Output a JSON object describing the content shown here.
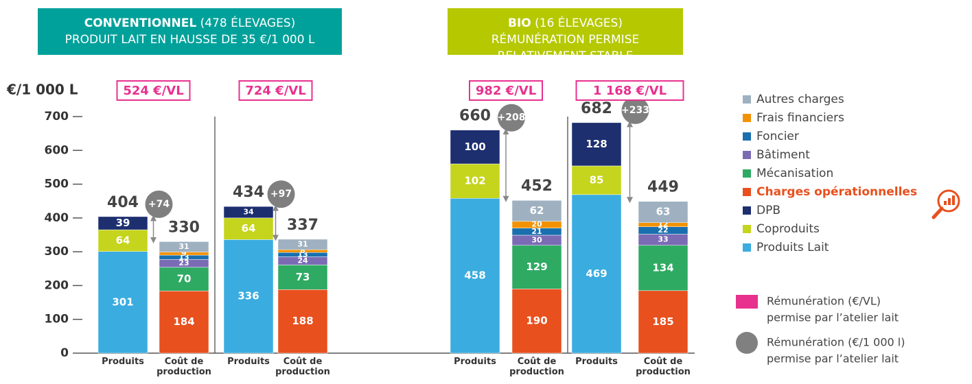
{
  "chart_data": {
    "type": "bar",
    "stacked": true,
    "panels": [
      {
        "title": "CONVENTIONNEL",
        "note": "(478 ÉLEVAGES)",
        "subtitle": "PRODUIT LAIT EN HAUSSE DE  35 €/1 000 L",
        "color": "#00a19a"
      },
      {
        "title": "BIO",
        "note": "(16 ÉLEVAGES)",
        "subtitle": "RÉMUNÉRATION PERMISE RELATIVEMENT STABLE",
        "color": "#b5c800"
      }
    ],
    "y_label": "€/1 000 L",
    "ylim": [
      0,
      700
    ],
    "yticks": [
      0,
      100,
      200,
      300,
      400,
      500,
      600,
      700
    ],
    "categories": [
      "Produits",
      "Coût de production",
      "Produits",
      "Coût de production",
      "Produits",
      "Coût de production",
      "Produits",
      "Coût de production"
    ],
    "series": [
      {
        "name": "Produits Lait",
        "color": "#3aace0",
        "values": [
          301,
          null,
          336,
          null,
          458,
          null,
          469,
          null
        ]
      },
      {
        "name": "Coproduits",
        "color": "#c5d41c",
        "values": [
          64,
          null,
          64,
          null,
          102,
          null,
          85,
          null
        ]
      },
      {
        "name": "DPB",
        "color": "#1d2f6f",
        "values": [
          39,
          null,
          34,
          null,
          100,
          null,
          128,
          null
        ]
      },
      {
        "name": "Charges opérationnelles",
        "color": "#e8501e",
        "values": [
          null,
          184,
          null,
          188,
          null,
          190,
          null,
          185
        ]
      },
      {
        "name": "Mécanisation",
        "color": "#2eaa62",
        "values": [
          null,
          70,
          null,
          73,
          null,
          129,
          null,
          134
        ]
      },
      {
        "name": "Bâtiment",
        "color": "#7b6bb5",
        "values": [
          null,
          23,
          null,
          24,
          null,
          30,
          null,
          33
        ]
      },
      {
        "name": "Foncier",
        "color": "#1a6fae",
        "values": [
          null,
          13,
          null,
          13,
          null,
          21,
          null,
          22
        ]
      },
      {
        "name": "Frais financiers",
        "color": "#f39200",
        "values": [
          null,
          9,
          null,
          8,
          null,
          20,
          null,
          12
        ]
      },
      {
        "name": "Autres charges",
        "color": "#9fb1c0",
        "values": [
          null,
          31,
          null,
          31,
          null,
          62,
          null,
          63
        ]
      }
    ],
    "totals": [
      404,
      330,
      434,
      337,
      660,
      452,
      682,
      449
    ],
    "margins": [
      74,
      97,
      208,
      233
    ],
    "margin_labels": [
      "+74",
      "+97",
      "+208",
      "+233"
    ],
    "remunerations": [
      {
        "value": 524,
        "label": "524 €/VL"
      },
      {
        "value": 724,
        "label": "724 €/VL"
      },
      {
        "value": 982,
        "label": "982 €/VL"
      },
      {
        "value": 1168,
        "label": "1 168 €/VL"
      }
    ],
    "legend_notes": [
      {
        "color": "#e8318f",
        "lines": [
          "Rémunération (€/VL)",
          "permise par l’atelier lait"
        ]
      },
      {
        "color": "#808080",
        "lines": [
          "Rémunération (€/1 000 l)",
          "permise par l’atelier lait"
        ]
      }
    ],
    "highlight": "Charges opérationnelles"
  }
}
